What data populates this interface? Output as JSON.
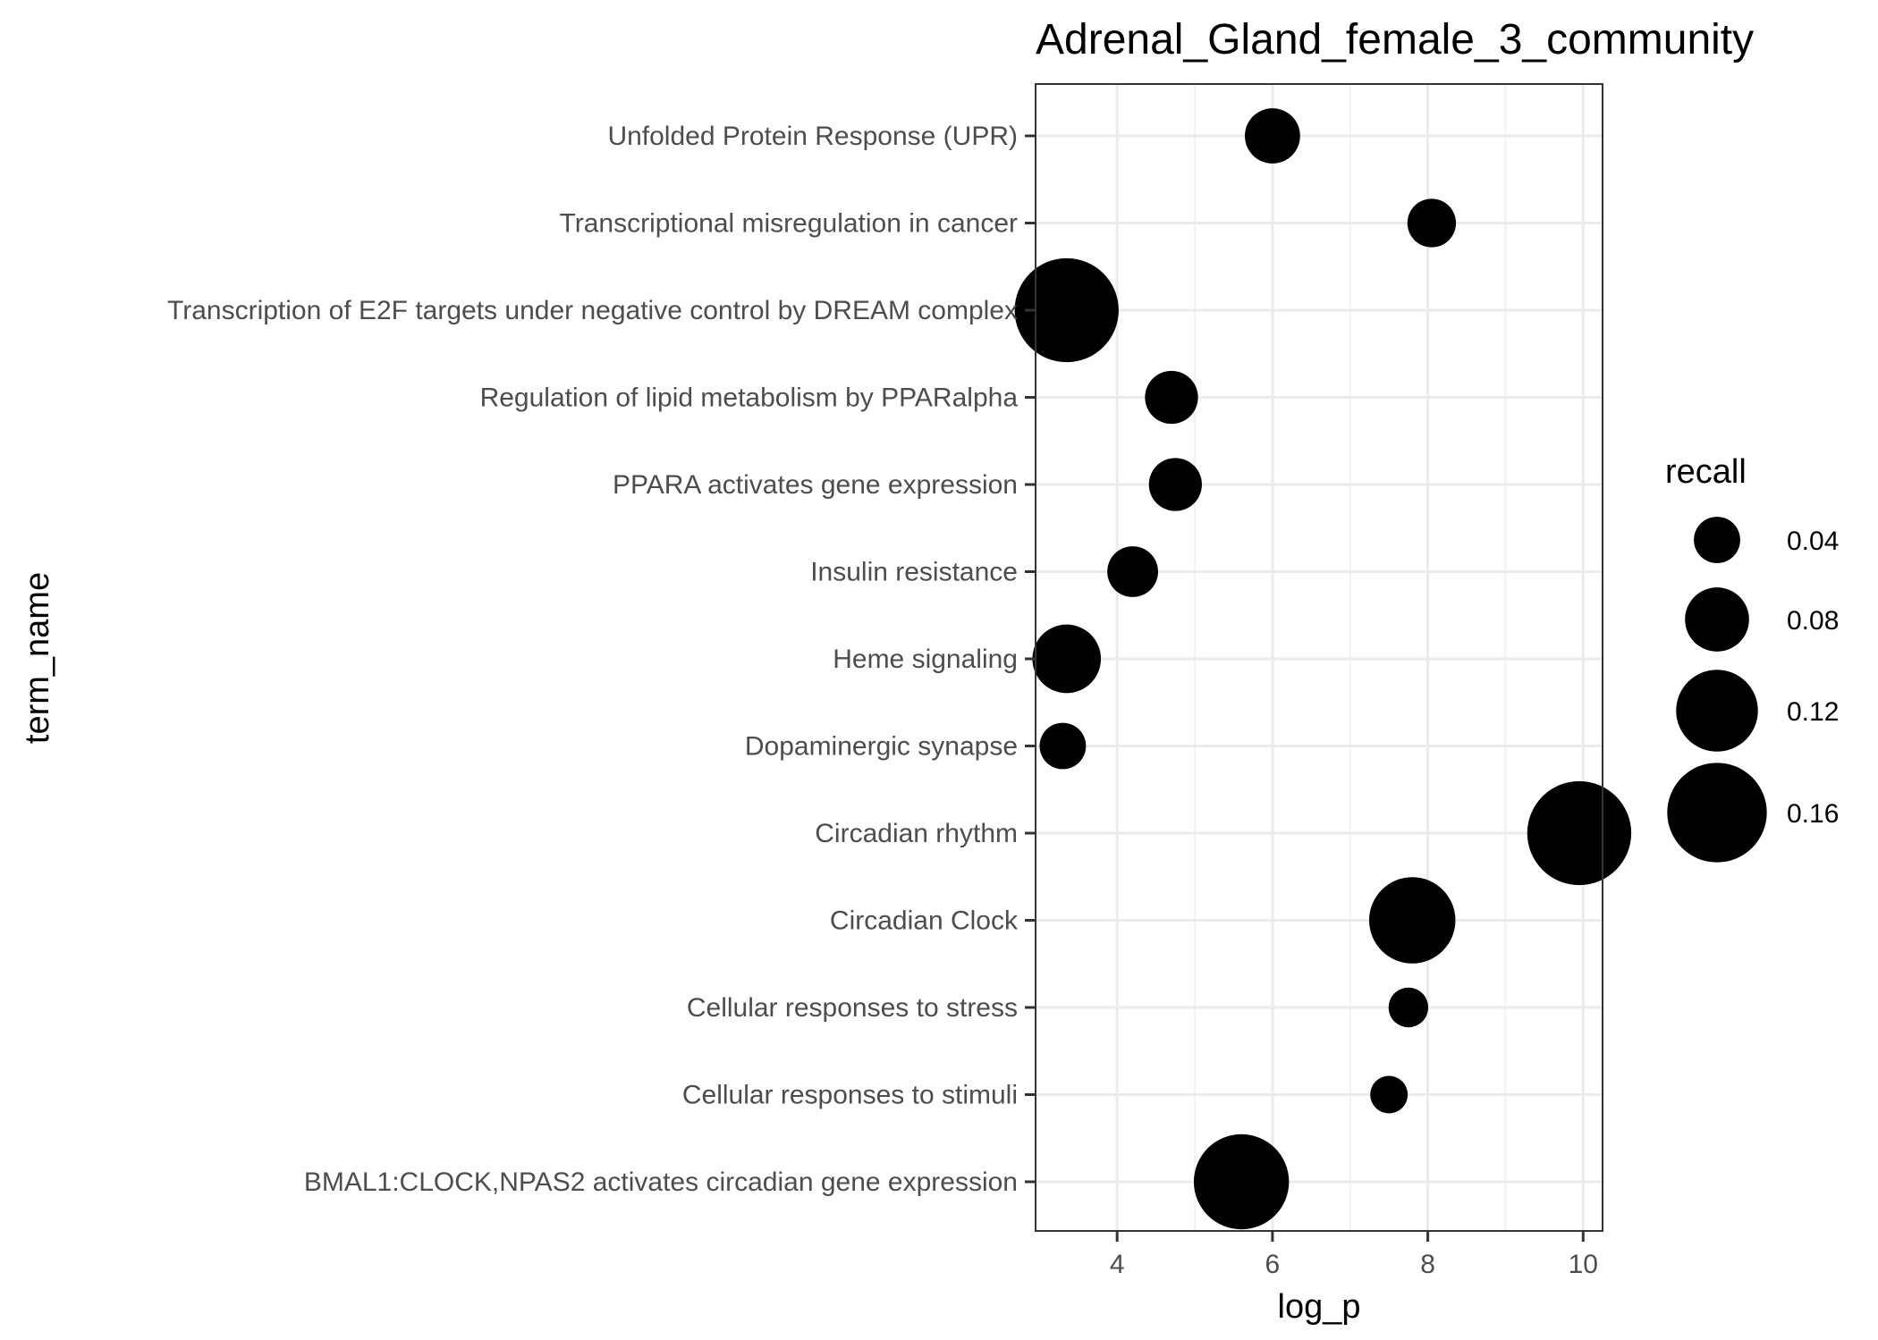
{
  "chart_data": {
    "type": "scatter",
    "title": "Adrenal_Gland_female_3_community",
    "xlabel": "log_p",
    "ylabel": "term_name",
    "xlim": [
      2.95,
      10.25
    ],
    "x_ticks": [
      4,
      6,
      8,
      10
    ],
    "grid": true,
    "size_legend": {
      "title": "recall",
      "values": [
        0.04,
        0.08,
        0.12,
        0.16
      ],
      "labels": [
        "0.04",
        "0.08",
        "0.12",
        "0.16"
      ],
      "position": "right"
    },
    "categories": [
      "BMAL1:CLOCK,NPAS2 activates circadian gene expression",
      "Cellular responses to stimuli",
      "Cellular responses to stress",
      "Circadian Clock",
      "Circadian rhythm",
      "Dopaminergic synapse",
      "Heme signaling",
      "Insulin resistance",
      "PPARA activates gene expression",
      "Regulation of lipid metabolism by PPARalpha",
      "Transcription of E2F targets under negative control by DREAM complex",
      "Transcriptional misregulation in cancer",
      "Unfolded Protein Response (UPR)"
    ],
    "points": [
      {
        "term": "BMAL1:CLOCK,NPAS2 activates circadian gene expression",
        "log_p": 5.6,
        "recall": 0.15
      },
      {
        "term": "Cellular responses to stimuli",
        "log_p": 7.5,
        "recall": 0.02
      },
      {
        "term": "Cellular responses to stress",
        "log_p": 7.75,
        "recall": 0.025
      },
      {
        "term": "Circadian Clock",
        "log_p": 7.8,
        "recall": 0.13
      },
      {
        "term": "Circadian rhythm",
        "log_p": 9.95,
        "recall": 0.17
      },
      {
        "term": "Dopaminergic synapse",
        "log_p": 3.3,
        "recall": 0.04
      },
      {
        "term": "Heme signaling",
        "log_p": 3.35,
        "recall": 0.09
      },
      {
        "term": "Insulin resistance",
        "log_p": 4.2,
        "recall": 0.05
      },
      {
        "term": "PPARA activates gene expression",
        "log_p": 4.75,
        "recall": 0.055
      },
      {
        "term": "Regulation of lipid metabolism by PPARalpha",
        "log_p": 4.7,
        "recall": 0.055
      },
      {
        "term": "Transcription of E2F targets under negative control by DREAM complex",
        "log_p": 3.35,
        "recall": 0.17
      },
      {
        "term": "Transcriptional misregulation in cancer",
        "log_p": 8.05,
        "recall": 0.045
      },
      {
        "term": "Unfolded Protein Response (UPR)",
        "log_p": 6.0,
        "recall": 0.06
      }
    ]
  }
}
